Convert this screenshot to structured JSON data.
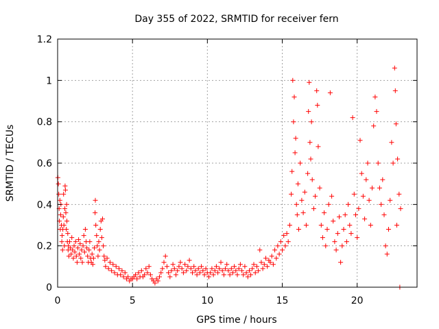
{
  "chart_data": {
    "type": "scatter",
    "title": "Day 355 of 2022, SRMTID for receiver fern",
    "xlabel": "GPS time / hours",
    "ylabel": "SRMTID / TECUs",
    "xlim": [
      0,
      24
    ],
    "ylim": [
      0,
      1.2
    ],
    "xticks": [
      0,
      5,
      10,
      15,
      20
    ],
    "xtick_labels": [
      "0",
      "5",
      "10",
      "15",
      "20"
    ],
    "yticks": [
      0,
      0.2,
      0.4,
      0.6,
      0.8,
      1.0,
      1.2
    ],
    "ytick_labels": [
      "0",
      "0.2",
      "0.4",
      "0.6",
      "0.8",
      "1",
      "1.2"
    ],
    "grid": true,
    "marker": "+",
    "series": [
      {
        "name": "fern",
        "color": "#ff0000",
        "points": [
          [
            0.02,
            0.53
          ],
          [
            0.05,
            0.5
          ],
          [
            0.08,
            0.45
          ],
          [
            0.1,
            0.38
          ],
          [
            0.12,
            0.32
          ],
          [
            0.15,
            0.42
          ],
          [
            0.18,
            0.28
          ],
          [
            0.2,
            0.35
          ],
          [
            0.22,
            0.4
          ],
          [
            0.25,
            0.3
          ],
          [
            0.28,
            0.22
          ],
          [
            0.3,
            0.25
          ],
          [
            0.33,
            0.18
          ],
          [
            0.35,
            0.28
          ],
          [
            0.38,
            0.34
          ],
          [
            0.4,
            0.45
          ],
          [
            0.42,
            0.3
          ],
          [
            0.45,
            0.2
          ],
          [
            0.48,
            0.38
          ],
          [
            0.5,
            0.49
          ],
          [
            0.52,
            0.47
          ],
          [
            0.55,
            0.36
          ],
          [
            0.58,
            0.28
          ],
          [
            0.6,
            0.4
          ],
          [
            0.62,
            0.32
          ],
          [
            0.65,
            0.22
          ],
          [
            0.68,
            0.26
          ],
          [
            0.7,
            0.18
          ],
          [
            0.72,
            0.2
          ],
          [
            0.75,
            0.15
          ],
          [
            0.8,
            0.22
          ],
          [
            0.85,
            0.19
          ],
          [
            0.9,
            0.16
          ],
          [
            0.95,
            0.24
          ],
          [
            1.0,
            0.18
          ],
          [
            1.05,
            0.14
          ],
          [
            1.1,
            0.2
          ],
          [
            1.15,
            0.17
          ],
          [
            1.2,
            0.22
          ],
          [
            1.25,
            0.15
          ],
          [
            1.3,
            0.12
          ],
          [
            1.35,
            0.19
          ],
          [
            1.4,
            0.23
          ],
          [
            1.45,
            0.16
          ],
          [
            1.5,
            0.21
          ],
          [
            1.55,
            0.14
          ],
          [
            1.6,
            0.18
          ],
          [
            1.65,
            0.12
          ],
          [
            1.7,
            0.2
          ],
          [
            1.75,
            0.25
          ],
          [
            1.8,
            0.17
          ],
          [
            1.85,
            0.28
          ],
          [
            1.9,
            0.22
          ],
          [
            1.95,
            0.19
          ],
          [
            2.0,
            0.15
          ],
          [
            2.05,
            0.12
          ],
          [
            2.1,
            0.18
          ],
          [
            2.15,
            0.22
          ],
          [
            2.2,
            0.14
          ],
          [
            2.25,
            0.12
          ],
          [
            2.3,
            0.16
          ],
          [
            2.35,
            0.11
          ],
          [
            2.4,
            0.14
          ],
          [
            2.45,
            0.19
          ],
          [
            2.5,
            0.36
          ],
          [
            2.52,
            0.42
          ],
          [
            2.55,
            0.3
          ],
          [
            2.6,
            0.25
          ],
          [
            2.65,
            0.2
          ],
          [
            2.7,
            0.15
          ],
          [
            2.75,
            0.22
          ],
          [
            2.8,
            0.18
          ],
          [
            2.85,
            0.28
          ],
          [
            2.9,
            0.32
          ],
          [
            2.95,
            0.24
          ],
          [
            3.0,
            0.33
          ],
          [
            3.05,
            0.2
          ],
          [
            3.1,
            0.15
          ],
          [
            3.15,
            0.13
          ],
          [
            3.2,
            0.1
          ],
          [
            3.3,
            0.14
          ],
          [
            3.4,
            0.09
          ],
          [
            3.5,
            0.12
          ],
          [
            3.6,
            0.08
          ],
          [
            3.7,
            0.11
          ],
          [
            3.8,
            0.07
          ],
          [
            3.9,
            0.1
          ],
          [
            4.0,
            0.06
          ],
          [
            4.1,
            0.09
          ],
          [
            4.2,
            0.06
          ],
          [
            4.3,
            0.08
          ],
          [
            4.4,
            0.05
          ],
          [
            4.5,
            0.07
          ],
          [
            4.6,
            0.04
          ],
          [
            4.7,
            0.05
          ],
          [
            4.8,
            0.03
          ],
          [
            4.9,
            0.04
          ],
          [
            5.0,
            0.04
          ],
          [
            5.1,
            0.05
          ],
          [
            5.2,
            0.06
          ],
          [
            5.3,
            0.04
          ],
          [
            5.4,
            0.07
          ],
          [
            5.5,
            0.05
          ],
          [
            5.6,
            0.08
          ],
          [
            5.7,
            0.05
          ],
          [
            5.8,
            0.06
          ],
          [
            5.9,
            0.09
          ],
          [
            6.0,
            0.07
          ],
          [
            6.1,
            0.1
          ],
          [
            6.2,
            0.06
          ],
          [
            6.3,
            0.04
          ],
          [
            6.4,
            0.03
          ],
          [
            6.5,
            0.02
          ],
          [
            6.6,
            0.04
          ],
          [
            6.7,
            0.03
          ],
          [
            6.8,
            0.05
          ],
          [
            6.9,
            0.07
          ],
          [
            7.0,
            0.09
          ],
          [
            7.1,
            0.12
          ],
          [
            7.2,
            0.15
          ],
          [
            7.3,
            0.1
          ],
          [
            7.4,
            0.07
          ],
          [
            7.5,
            0.05
          ],
          [
            7.6,
            0.08
          ],
          [
            7.7,
            0.11
          ],
          [
            7.8,
            0.09
          ],
          [
            7.9,
            0.06
          ],
          [
            8.0,
            0.08
          ],
          [
            8.1,
            0.1
          ],
          [
            8.2,
            0.12
          ],
          [
            8.3,
            0.09
          ],
          [
            8.4,
            0.07
          ],
          [
            8.5,
            0.11
          ],
          [
            8.6,
            0.08
          ],
          [
            8.7,
            0.1
          ],
          [
            8.8,
            0.13
          ],
          [
            8.9,
            0.09
          ],
          [
            9.0,
            0.07
          ],
          [
            9.1,
            0.1
          ],
          [
            9.2,
            0.08
          ],
          [
            9.3,
            0.06
          ],
          [
            9.4,
            0.09
          ],
          [
            9.5,
            0.07
          ],
          [
            9.6,
            0.1
          ],
          [
            9.7,
            0.08
          ],
          [
            9.8,
            0.06
          ],
          [
            9.9,
            0.09
          ],
          [
            10.0,
            0.07
          ],
          [
            10.1,
            0.05
          ],
          [
            10.2,
            0.07
          ],
          [
            10.3,
            0.09
          ],
          [
            10.4,
            0.06
          ],
          [
            10.5,
            0.08
          ],
          [
            10.6,
            0.1
          ],
          [
            10.7,
            0.07
          ],
          [
            10.8,
            0.09
          ],
          [
            10.9,
            0.12
          ],
          [
            11.0,
            0.08
          ],
          [
            11.1,
            0.06
          ],
          [
            11.2,
            0.09
          ],
          [
            11.3,
            0.11
          ],
          [
            11.4,
            0.08
          ],
          [
            11.5,
            0.06
          ],
          [
            11.6,
            0.09
          ],
          [
            11.7,
            0.07
          ],
          [
            11.8,
            0.1
          ],
          [
            11.9,
            0.08
          ],
          [
            12.0,
            0.06
          ],
          [
            12.1,
            0.09
          ],
          [
            12.2,
            0.11
          ],
          [
            12.3,
            0.08
          ],
          [
            12.4,
            0.06
          ],
          [
            12.5,
            0.1
          ],
          [
            12.6,
            0.07
          ],
          [
            12.7,
            0.05
          ],
          [
            12.8,
            0.08
          ],
          [
            12.9,
            0.06
          ],
          [
            13.0,
            0.09
          ],
          [
            13.1,
            0.11
          ],
          [
            13.2,
            0.07
          ],
          [
            13.3,
            0.1
          ],
          [
            13.4,
            0.08
          ],
          [
            13.5,
            0.18
          ],
          [
            13.6,
            0.12
          ],
          [
            13.7,
            0.09
          ],
          [
            13.8,
            0.11
          ],
          [
            13.9,
            0.14
          ],
          [
            14.0,
            0.1
          ],
          [
            14.1,
            0.13
          ],
          [
            14.2,
            0.12
          ],
          [
            14.3,
            0.15
          ],
          [
            14.4,
            0.11
          ],
          [
            14.5,
            0.18
          ],
          [
            14.6,
            0.14
          ],
          [
            14.7,
            0.2
          ],
          [
            14.8,
            0.16
          ],
          [
            14.9,
            0.22
          ],
          [
            15.0,
            0.18
          ],
          [
            15.1,
            0.25
          ],
          [
            15.2,
            0.2
          ],
          [
            15.3,
            0.26
          ],
          [
            15.4,
            0.22
          ],
          [
            15.5,
            0.3
          ],
          [
            15.6,
            0.45
          ],
          [
            15.65,
            0.56
          ],
          [
            15.7,
            1.0
          ],
          [
            15.75,
            0.8
          ],
          [
            15.8,
            0.92
          ],
          [
            15.85,
            0.65
          ],
          [
            15.9,
            0.72
          ],
          [
            15.95,
            0.4
          ],
          [
            16.0,
            0.35
          ],
          [
            16.05,
            0.5
          ],
          [
            16.1,
            0.28
          ],
          [
            16.2,
            0.6
          ],
          [
            16.3,
            0.42
          ],
          [
            16.4,
            0.36
          ],
          [
            16.5,
            0.46
          ],
          [
            16.6,
            0.3
          ],
          [
            16.7,
            0.55
          ],
          [
            16.75,
            0.85
          ],
          [
            16.8,
            0.99
          ],
          [
            16.85,
            0.7
          ],
          [
            16.9,
            0.62
          ],
          [
            16.95,
            0.8
          ],
          [
            17.0,
            0.52
          ],
          [
            17.1,
            0.38
          ],
          [
            17.2,
            0.44
          ],
          [
            17.3,
            0.95
          ],
          [
            17.35,
            0.88
          ],
          [
            17.4,
            0.68
          ],
          [
            17.5,
            0.48
          ],
          [
            17.6,
            0.3
          ],
          [
            17.7,
            0.24
          ],
          [
            17.8,
            0.36
          ],
          [
            17.9,
            0.2
          ],
          [
            18.0,
            0.28
          ],
          [
            18.1,
            0.4
          ],
          [
            18.2,
            0.94
          ],
          [
            18.3,
            0.44
          ],
          [
            18.4,
            0.32
          ],
          [
            18.5,
            0.22
          ],
          [
            18.6,
            0.18
          ],
          [
            18.7,
            0.26
          ],
          [
            18.8,
            0.34
          ],
          [
            18.9,
            0.12
          ],
          [
            19.0,
            0.2
          ],
          [
            19.1,
            0.28
          ],
          [
            19.2,
            0.35
          ],
          [
            19.3,
            0.22
          ],
          [
            19.4,
            0.4
          ],
          [
            19.5,
            0.3
          ],
          [
            19.6,
            0.26
          ],
          [
            19.7,
            0.82
          ],
          [
            19.8,
            0.45
          ],
          [
            19.9,
            0.35
          ],
          [
            20.0,
            0.24
          ],
          [
            20.1,
            0.38
          ],
          [
            20.2,
            0.71
          ],
          [
            20.3,
            0.55
          ],
          [
            20.4,
            0.44
          ],
          [
            20.5,
            0.33
          ],
          [
            20.6,
            0.52
          ],
          [
            20.7,
            0.6
          ],
          [
            20.8,
            0.42
          ],
          [
            20.9,
            0.3
          ],
          [
            21.0,
            0.48
          ],
          [
            21.1,
            0.78
          ],
          [
            21.2,
            0.92
          ],
          [
            21.3,
            0.85
          ],
          [
            21.4,
            0.6
          ],
          [
            21.5,
            0.48
          ],
          [
            21.6,
            0.4
          ],
          [
            21.7,
            0.52
          ],
          [
            21.8,
            0.35
          ],
          [
            21.9,
            0.2
          ],
          [
            22.0,
            0.16
          ],
          [
            22.1,
            0.28
          ],
          [
            22.2,
            0.42
          ],
          [
            22.3,
            0.7
          ],
          [
            22.4,
            0.6
          ],
          [
            22.5,
            1.06
          ],
          [
            22.55,
            0.95
          ],
          [
            22.6,
            0.79
          ],
          [
            22.65,
            0.3
          ],
          [
            22.7,
            0.62
          ],
          [
            22.8,
            0.45
          ],
          [
            22.85,
            0.0
          ],
          [
            22.9,
            0.38
          ]
        ]
      }
    ]
  }
}
